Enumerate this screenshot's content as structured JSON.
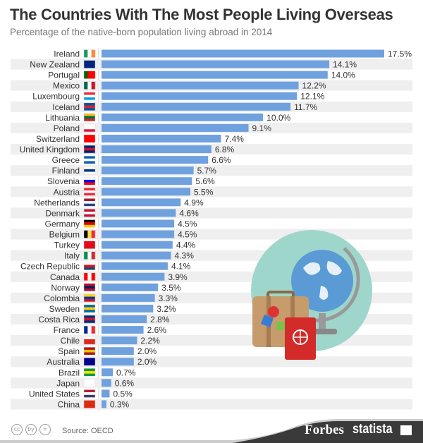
{
  "chart_data": {
    "type": "bar",
    "orientation": "horizontal",
    "title": "The Countries With The Most People Living Overseas",
    "subtitle": "Percentage of the native-born population living abroad in 2014",
    "categories": [
      "Ireland",
      "New Zealand",
      "Portugal",
      "Mexico",
      "Luxembourg",
      "Iceland",
      "Lithuania",
      "Poland",
      "Switzerland",
      "United Kingdom",
      "Greece",
      "Finland",
      "Slovenia",
      "Austria",
      "Netherlands",
      "Denmark",
      "Germany",
      "Belgium",
      "Turkey",
      "Italy",
      "Czech Republic",
      "Canada",
      "Norway",
      "Colombia",
      "Sweden",
      "Costa Rica",
      "France",
      "Chile",
      "Spain",
      "Australia",
      "Brazil",
      "Japan",
      "United States",
      "China"
    ],
    "values": [
      17.5,
      14.1,
      14.0,
      12.2,
      12.1,
      11.7,
      10.0,
      9.1,
      7.4,
      6.8,
      6.6,
      5.7,
      5.6,
      5.5,
      4.9,
      4.6,
      4.5,
      4.5,
      4.4,
      4.3,
      4.1,
      3.9,
      3.5,
      3.3,
      3.2,
      2.8,
      2.6,
      2.2,
      2.0,
      2.0,
      0.7,
      0.6,
      0.5,
      0.3
    ],
    "value_format": "{v}%",
    "xlim": [
      0,
      17.5
    ],
    "grid": false,
    "legend": "none",
    "bar_color": "#6fa1de",
    "band_color": "#efefef"
  },
  "flags": [
    {
      "dir": "v",
      "c": [
        "#169b62",
        "#fff",
        "#ff883e"
      ]
    },
    {
      "dir": "h",
      "c": [
        "#00247d",
        "#00247d",
        "#00247d"
      ]
    },
    {
      "dir": "v",
      "c": [
        "#006600",
        "#ff0000",
        "#ff0000"
      ]
    },
    {
      "dir": "v",
      "c": [
        "#006847",
        "#fff",
        "#ce1126"
      ]
    },
    {
      "dir": "h",
      "c": [
        "#ed2939",
        "#fff",
        "#00a1de"
      ]
    },
    {
      "dir": "h",
      "c": [
        "#02529c",
        "#dc1e35",
        "#02529c"
      ]
    },
    {
      "dir": "h",
      "c": [
        "#fdb913",
        "#006a44",
        "#c1272d"
      ]
    },
    {
      "dir": "h",
      "c": [
        "#fff",
        "#fff",
        "#dc143c"
      ]
    },
    {
      "dir": "h",
      "c": [
        "#ff0000",
        "#ff0000",
        "#ff0000"
      ]
    },
    {
      "dir": "h",
      "c": [
        "#012169",
        "#c8102e",
        "#012169"
      ]
    },
    {
      "dir": "h",
      "c": [
        "#0d5eaf",
        "#fff",
        "#0d5eaf"
      ]
    },
    {
      "dir": "h",
      "c": [
        "#fff",
        "#003580",
        "#fff"
      ]
    },
    {
      "dir": "h",
      "c": [
        "#fff",
        "#0000ff",
        "#ff0000"
      ]
    },
    {
      "dir": "h",
      "c": [
        "#ed2939",
        "#fff",
        "#ed2939"
      ]
    },
    {
      "dir": "h",
      "c": [
        "#ae1c28",
        "#fff",
        "#21468b"
      ]
    },
    {
      "dir": "h",
      "c": [
        "#c60c30",
        "#fff",
        "#c60c30"
      ]
    },
    {
      "dir": "h",
      "c": [
        "#000",
        "#dd0000",
        "#ffce00"
      ]
    },
    {
      "dir": "v",
      "c": [
        "#000",
        "#fae042",
        "#ed2939"
      ]
    },
    {
      "dir": "h",
      "c": [
        "#e30a17",
        "#e30a17",
        "#e30a17"
      ]
    },
    {
      "dir": "v",
      "c": [
        "#009246",
        "#fff",
        "#ce2b37"
      ]
    },
    {
      "dir": "h",
      "c": [
        "#fff",
        "#d7141a",
        "#11457e"
      ]
    },
    {
      "dir": "v",
      "c": [
        "#ff0000",
        "#fff",
        "#ff0000"
      ]
    },
    {
      "dir": "h",
      "c": [
        "#ba0c2f",
        "#00205b",
        "#ba0c2f"
      ]
    },
    {
      "dir": "h",
      "c": [
        "#fcd116",
        "#003893",
        "#ce1126"
      ]
    },
    {
      "dir": "h",
      "c": [
        "#006aa7",
        "#fecc00",
        "#006aa7"
      ]
    },
    {
      "dir": "h",
      "c": [
        "#002b7f",
        "#ce1126",
        "#002b7f"
      ]
    },
    {
      "dir": "v",
      "c": [
        "#002395",
        "#fff",
        "#ed2939"
      ]
    },
    {
      "dir": "h",
      "c": [
        "#fff",
        "#d52b1e",
        "#d52b1e"
      ]
    },
    {
      "dir": "h",
      "c": [
        "#aa151b",
        "#f1bf00",
        "#aa151b"
      ]
    },
    {
      "dir": "h",
      "c": [
        "#00008b",
        "#00008b",
        "#00008b"
      ]
    },
    {
      "dir": "h",
      "c": [
        "#009c3b",
        "#ffdf00",
        "#009c3b"
      ]
    },
    {
      "dir": "h",
      "c": [
        "#fff",
        "#fff",
        "#fff"
      ]
    },
    {
      "dir": "h",
      "c": [
        "#b22234",
        "#fff",
        "#3c3b6e"
      ]
    },
    {
      "dir": "h",
      "c": [
        "#de2910",
        "#de2910",
        "#de2910"
      ]
    }
  ],
  "footer": {
    "source": "Source: OECD",
    "license_icons": [
      "cc",
      "by",
      "="
    ],
    "forbes": "Forbes",
    "statista": "statista"
  },
  "illustration": {
    "circle_color": "#9fd6cc",
    "suitcase_color": "#c69c6d",
    "passport_color": "#d32a2a",
    "globe_color": "#5a9bd5"
  }
}
